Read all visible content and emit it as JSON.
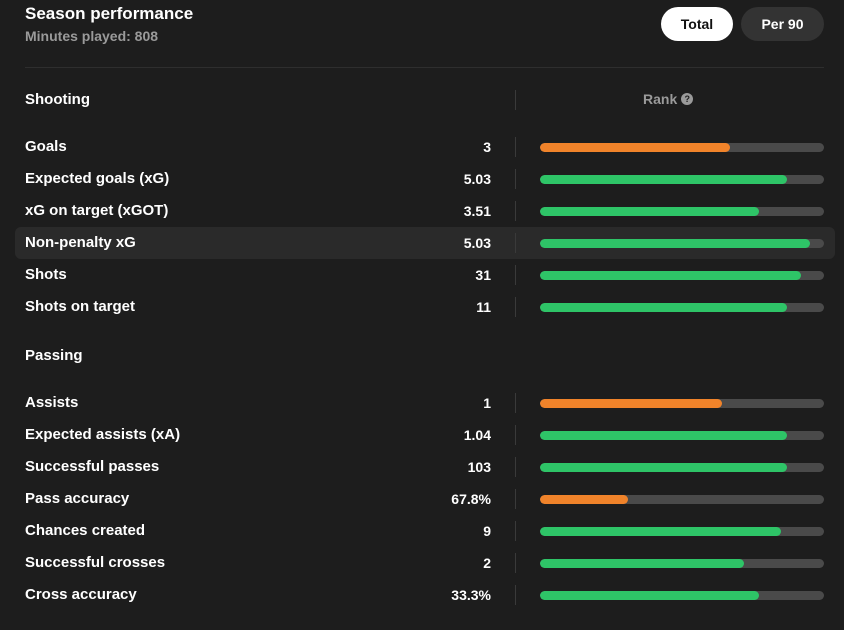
{
  "header": {
    "title": "Season performance",
    "subtitle": "Minutes played: 808",
    "toggle_total": "Total",
    "toggle_per90": "Per 90"
  },
  "rank_label": "Rank",
  "rank_help_glyph": "?",
  "colors": {
    "green": "#2ec467",
    "orange": "#f0832a",
    "track": "#4a4a4a"
  },
  "sections": [
    {
      "title": "Shooting",
      "rows": [
        {
          "label": "Goals",
          "value": "3",
          "rank_pct": 67,
          "color": "orange",
          "highlight": false
        },
        {
          "label": "Expected goals (xG)",
          "value": "5.03",
          "rank_pct": 87,
          "color": "green",
          "highlight": false
        },
        {
          "label": "xG on target (xGOT)",
          "value": "3.51",
          "rank_pct": 77,
          "color": "green",
          "highlight": false
        },
        {
          "label": "Non-penalty xG",
          "value": "5.03",
          "rank_pct": 95,
          "color": "green",
          "highlight": true
        },
        {
          "label": "Shots",
          "value": "31",
          "rank_pct": 92,
          "color": "green",
          "highlight": false
        },
        {
          "label": "Shots on target",
          "value": "11",
          "rank_pct": 87,
          "color": "green",
          "highlight": false
        }
      ]
    },
    {
      "title": "Passing",
      "rows": [
        {
          "label": "Assists",
          "value": "1",
          "rank_pct": 64,
          "color": "orange",
          "highlight": false
        },
        {
          "label": "Expected assists (xA)",
          "value": "1.04",
          "rank_pct": 87,
          "color": "green",
          "highlight": false
        },
        {
          "label": "Successful passes",
          "value": "103",
          "rank_pct": 87,
          "color": "green",
          "highlight": false
        },
        {
          "label": "Pass accuracy",
          "value": "67.8%",
          "rank_pct": 31,
          "color": "orange",
          "highlight": false
        },
        {
          "label": "Chances created",
          "value": "9",
          "rank_pct": 85,
          "color": "green",
          "highlight": false
        },
        {
          "label": "Successful crosses",
          "value": "2",
          "rank_pct": 72,
          "color": "green",
          "highlight": false
        },
        {
          "label": "Cross accuracy",
          "value": "33.3%",
          "rank_pct": 77,
          "color": "green",
          "highlight": false
        }
      ]
    }
  ]
}
